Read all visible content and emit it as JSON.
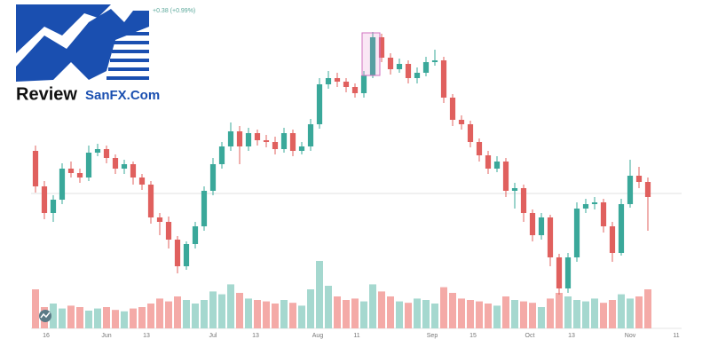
{
  "logo": {
    "word": "Review",
    "site": "SanFX.Com"
  },
  "chart_data": {
    "type": "candlestick",
    "subtitle": "+0.38 (+0.99%)",
    "open": [
      230,
      190,
      160,
      175,
      210,
      205,
      200,
      228,
      232,
      222,
      210,
      215,
      200,
      192,
      155,
      150,
      130,
      100,
      125,
      145,
      185,
      215,
      235,
      252,
      235,
      250,
      242,
      240,
      232,
      250,
      230,
      235,
      260,
      305,
      312,
      308,
      302,
      295,
      315,
      358,
      335,
      322,
      328,
      312,
      318,
      330,
      332,
      290,
      265,
      260,
      240,
      225,
      210,
      218,
      185,
      188,
      160,
      135,
      155,
      110,
      75,
      110,
      165,
      170,
      172,
      145,
      115,
      170,
      202,
      195
    ],
    "high": [
      236,
      196,
      180,
      216,
      218,
      210,
      236,
      238,
      236,
      226,
      220,
      218,
      204,
      196,
      160,
      156,
      134,
      128,
      150,
      190,
      222,
      240,
      262,
      258,
      256,
      254,
      248,
      246,
      256,
      254,
      240,
      266,
      312,
      320,
      318,
      312,
      306,
      320,
      364,
      362,
      340,
      334,
      332,
      324,
      336,
      344,
      336,
      294,
      270,
      264,
      244,
      230,
      224,
      222,
      194,
      192,
      164,
      160,
      158,
      114,
      115,
      172,
      176,
      178,
      176,
      150,
      176,
      220,
      212,
      200
    ],
    "low": [
      183,
      153,
      150,
      170,
      200,
      194,
      196,
      224,
      216,
      204,
      204,
      192,
      186,
      148,
      135,
      120,
      92,
      96,
      120,
      140,
      180,
      210,
      230,
      215,
      230,
      236,
      234,
      226,
      228,
      224,
      226,
      230,
      255,
      300,
      302,
      296,
      290,
      290,
      312,
      330,
      316,
      318,
      306,
      306,
      314,
      326,
      284,
      258,
      254,
      234,
      218,
      204,
      206,
      178,
      165,
      150,
      128,
      130,
      100,
      68,
      70,
      105,
      160,
      164,
      138,
      105,
      112,
      166,
      188,
      140
    ],
    "close": [
      190,
      160,
      175,
      210,
      205,
      200,
      228,
      232,
      222,
      210,
      215,
      200,
      192,
      155,
      150,
      130,
      100,
      125,
      145,
      185,
      215,
      235,
      252,
      235,
      250,
      242,
      240,
      232,
      250,
      230,
      235,
      260,
      305,
      312,
      308,
      302,
      295,
      315,
      358,
      335,
      322,
      328,
      312,
      318,
      330,
      332,
      290,
      265,
      260,
      240,
      225,
      210,
      218,
      185,
      188,
      160,
      135,
      155,
      110,
      75,
      110,
      165,
      170,
      172,
      145,
      115,
      170,
      202,
      195,
      178
    ],
    "volume": [
      55,
      30,
      35,
      28,
      32,
      30,
      25,
      28,
      30,
      26,
      24,
      28,
      30,
      35,
      42,
      38,
      45,
      40,
      35,
      40,
      52,
      48,
      62,
      50,
      42,
      40,
      38,
      35,
      40,
      36,
      32,
      55,
      95,
      60,
      45,
      40,
      42,
      38,
      62,
      52,
      45,
      38,
      36,
      42,
      40,
      35,
      58,
      50,
      42,
      40,
      38,
      35,
      32,
      45,
      40,
      38,
      36,
      30,
      42,
      50,
      45,
      40,
      38,
      42,
      36,
      40,
      48,
      42,
      45,
      55
    ],
    "up_color": "#3aa89a",
    "down_color": "#e0605e",
    "volume_up_color": "#a5d8cf",
    "volume_down_color": "#f4aaa7",
    "xlim": [
      -0.5,
      73
    ],
    "xticks": [
      {
        "value": 1.2,
        "label": "16"
      },
      {
        "value": 8,
        "label": "Jun"
      },
      {
        "value": 12.5,
        "label": "13"
      },
      {
        "value": 20,
        "label": "Jul"
      },
      {
        "value": 24.8,
        "label": "13"
      },
      {
        "value": 31.8,
        "label": "Aug"
      },
      {
        "value": 36.2,
        "label": "11"
      },
      {
        "value": 44.7,
        "label": "Sep"
      },
      {
        "value": 49.3,
        "label": "15"
      },
      {
        "value": 55.7,
        "label": "Oct"
      },
      {
        "value": 60.4,
        "label": "13"
      },
      {
        "value": 67,
        "label": "Nov"
      },
      {
        "value": 72.2,
        "label": "11"
      }
    ],
    "ylim": [
      70,
      370
    ],
    "y2lim": [
      0,
      100
    ]
  }
}
